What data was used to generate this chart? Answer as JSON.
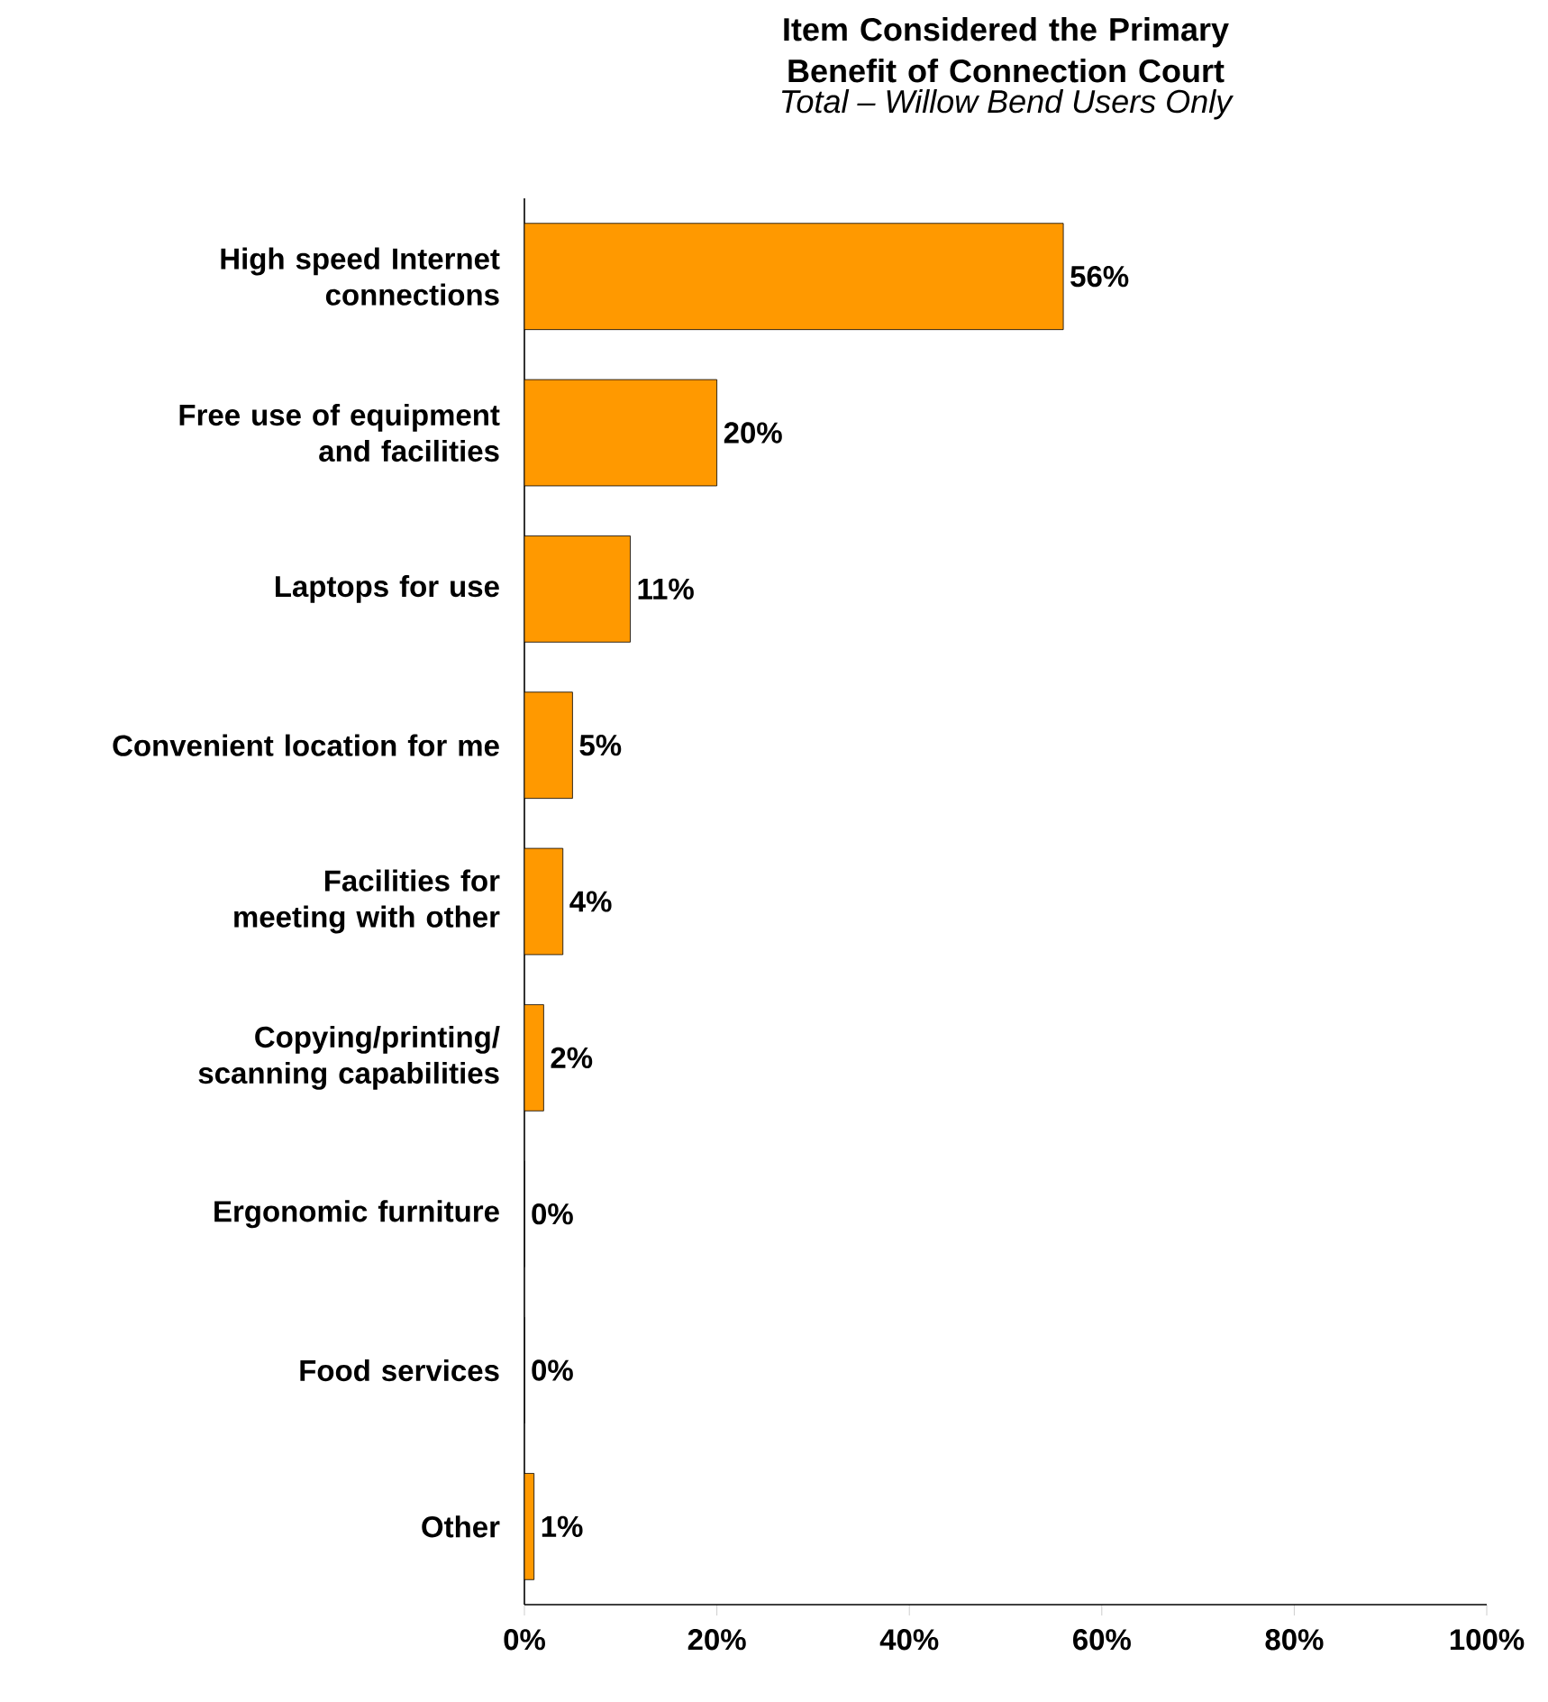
{
  "chart_data": {
    "type": "bar",
    "orientation": "horizontal",
    "title": "Item Considered the Primary Benefit of Connection Court",
    "subtitle": "Total – Willow Bend Users Only",
    "categories": [
      "High speed Internet connections",
      "Free use of equipment and facilities",
      "Laptops for use",
      "Convenient location for me",
      "Facilities for meeting with other",
      "Copying/printing/ scanning capabilities",
      "Ergonomic furniture",
      "Food services",
      "Other"
    ],
    "values": [
      56,
      20,
      11,
      5,
      4,
      2,
      0,
      0,
      1
    ],
    "value_labels": [
      "56%",
      "20%",
      "11%",
      "5%",
      "4%",
      "2%",
      "0%",
      "0%",
      "1%"
    ],
    "color": "#ff9900",
    "xlim": [
      0,
      100
    ],
    "xticks": [
      {
        "value": 0,
        "label": "0%"
      },
      {
        "value": 20,
        "label": "20%"
      },
      {
        "value": 40,
        "label": "40%"
      },
      {
        "value": 60,
        "label": "60%"
      },
      {
        "value": 80,
        "label": "80%"
      },
      {
        "value": 100,
        "label": "100%"
      }
    ],
    "grid": false
  }
}
